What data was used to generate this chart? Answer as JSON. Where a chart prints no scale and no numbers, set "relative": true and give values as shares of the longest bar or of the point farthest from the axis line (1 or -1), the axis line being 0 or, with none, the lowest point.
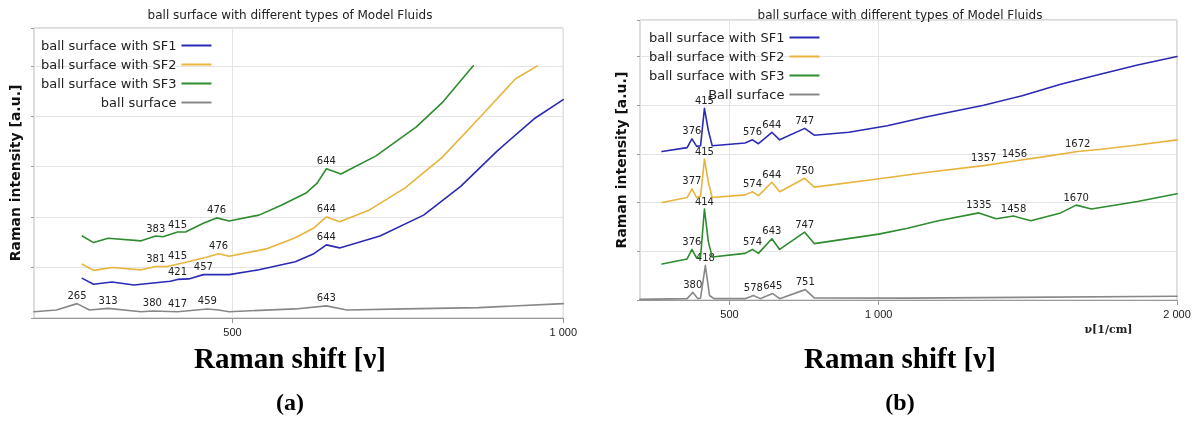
{
  "chart_data": [
    {
      "type": "line",
      "title": "ball surface with different types of Model Fluids",
      "ylabel": "Raman intensity [a.u.]",
      "relative": true,
      "xlim": [
        200,
        1000
      ],
      "xticks": [
        {
          "value": 500,
          "label": "500"
        },
        {
          "value": 1000,
          "label": "1 000"
        }
      ],
      "grid": true,
      "legend": "top left",
      "marker": "none",
      "line_style": "solid",
      "tick_labels": "x",
      "series": [
        {
          "name": "ball surface with SF1",
          "color": "#2a2ab4",
          "x": [
            273,
            290,
            318,
            351,
            384,
            406,
            417,
            434,
            456,
            495,
            540,
            595,
            623,
            642,
            662,
            723,
            789,
            845,
            900,
            956,
            1000
          ],
          "values": [
            0.157,
            0.134,
            0.143,
            0.131,
            0.14,
            0.146,
            0.153,
            0.155,
            0.172,
            0.172,
            0.191,
            0.223,
            0.255,
            0.29,
            0.278,
            0.325,
            0.408,
            0.522,
            0.662,
            0.79,
            0.866
          ]
        },
        {
          "name": "ball surface with SF2",
          "color": "#e8b43c",
          "x": [
            273,
            290,
            318,
            362,
            384,
            401,
            423,
            462,
            479,
            495,
            551,
            595,
            623,
            642,
            662,
            706,
            761,
            817,
            872,
            928,
            961
          ],
          "values": [
            0.213,
            0.189,
            0.2,
            0.191,
            0.204,
            0.204,
            0.217,
            0.242,
            0.255,
            0.245,
            0.274,
            0.318,
            0.357,
            0.401,
            0.382,
            0.427,
            0.516,
            0.637,
            0.79,
            0.949,
            1
          ]
        },
        {
          "name": "ball surface with SF3",
          "color": "#2e8b2e",
          "x": [
            273,
            290,
            312,
            362,
            384,
            395,
            417,
            429,
            456,
            476,
            495,
            540,
            573,
            612,
            628,
            642,
            664,
            717,
            778,
            817,
            864
          ],
          "values": [
            0.325,
            0.299,
            0.316,
            0.306,
            0.325,
            0.322,
            0.341,
            0.341,
            0.376,
            0.397,
            0.385,
            0.408,
            0.446,
            0.497,
            0.535,
            0.592,
            0.571,
            0.643,
            0.758,
            0.854,
            1
          ]
        },
        {
          "name": "ball surface",
          "color": "#888888",
          "x": [
            200,
            234,
            265,
            284,
            312,
            362,
            379,
            417,
            462,
            479,
            495,
            595,
            642,
            673,
            761,
            872,
            1000
          ],
          "values": [
            0.025,
            0.032,
            0.057,
            0.032,
            0.038,
            0.025,
            0.028,
            0.025,
            0.036,
            0.032,
            0.025,
            0.036,
            0.048,
            0.032,
            0.036,
            0.041,
            0.057
          ]
        }
      ],
      "annotations": [
        {
          "text": "383",
          "x": 384,
          "y": 0.325
        },
        {
          "text": "415",
          "x": 417,
          "y": 0.341
        },
        {
          "text": "476",
          "x": 476,
          "y": 0.397
        },
        {
          "text": "644",
          "x": 642,
          "y": 0.592
        },
        {
          "text": "381",
          "x": 384,
          "y": 0.204
        },
        {
          "text": "415",
          "x": 417,
          "y": 0.217
        },
        {
          "text": "476",
          "x": 479,
          "y": 0.255
        },
        {
          "text": "644",
          "x": 642,
          "y": 0.401
        },
        {
          "text": "421",
          "x": 417,
          "y": 0.153
        },
        {
          "text": "457",
          "x": 456,
          "y": 0.172
        },
        {
          "text": "644",
          "x": 642,
          "y": 0.29
        },
        {
          "text": "265",
          "x": 265,
          "y": 0.057
        },
        {
          "text": "313",
          "x": 312,
          "y": 0.038
        },
        {
          "text": "380",
          "x": 379,
          "y": 0.028
        },
        {
          "text": "417",
          "x": 417,
          "y": 0.025
        },
        {
          "text": "459",
          "x": 462,
          "y": 0.036
        },
        {
          "text": "643",
          "x": 642,
          "y": 0.048
        },
        "Raman shift [ν]",
        "(a)"
      ]
    },
    {
      "type": "line",
      "title": "ball surface with different types of Model Fluids",
      "xlabel": "ν[1/cm]",
      "ylabel": "Raman intensity [a.u.]",
      "relative": true,
      "xlim": [
        200,
        2000
      ],
      "xticks": [
        {
          "value": 500,
          "label": "500"
        },
        {
          "value": 1000,
          "label": "1 000"
        },
        {
          "value": 2000,
          "label": "2 000"
        }
      ],
      "grid": true,
      "legend": "top left",
      "marker": "none",
      "line_style": "solid",
      "tick_labels": "x",
      "series": [
        {
          "name": "ball surface with SF1",
          "color": "#2a2ab4",
          "x": [
            274,
            358,
            374,
            390,
            403,
            416,
            429,
            442,
            552,
            577,
            597,
            642,
            668,
            752,
            784,
            900,
            1029,
            1158,
            1352,
            1481,
            1610,
            1739,
            1868,
            2000
          ],
          "values": [
            0.61,
            0.626,
            0.662,
            0.631,
            0.634,
            0.787,
            0.697,
            0.634,
            0.645,
            0.658,
            0.642,
            0.689,
            0.658,
            0.705,
            0.677,
            0.689,
            0.716,
            0.752,
            0.8,
            0.839,
            0.886,
            0.926,
            0.965,
            1
          ]
        },
        {
          "name": "ball surface with SF2",
          "color": "#e8b43c",
          "x": [
            274,
            358,
            374,
            390,
            403,
            416,
            429,
            442,
            552,
            577,
            597,
            642,
            668,
            752,
            784,
            964,
            1158,
            1352,
            1455,
            1545,
            1667,
            1739,
            1868,
            2000
          ],
          "values": [
            0.401,
            0.421,
            0.457,
            0.421,
            0.426,
            0.579,
            0.484,
            0.421,
            0.432,
            0.445,
            0.429,
            0.484,
            0.445,
            0.5,
            0.464,
            0.492,
            0.524,
            0.552,
            0.571,
            0.587,
            0.61,
            0.618,
            0.637,
            0.658
          ]
        },
        {
          "name": "ball surface with SF3",
          "color": "#2e8b2e",
          "x": [
            274,
            358,
            374,
            390,
            403,
            416,
            429,
            442,
            552,
            577,
            597,
            642,
            668,
            752,
            784,
            1000,
            1097,
            1200,
            1336,
            1394,
            1452,
            1510,
            1610,
            1662,
            1713,
            1868,
            2000
          ],
          "values": [
            0.148,
            0.169,
            0.208,
            0.172,
            0.177,
            0.374,
            0.24,
            0.177,
            0.192,
            0.208,
            0.192,
            0.252,
            0.208,
            0.279,
            0.232,
            0.271,
            0.295,
            0.326,
            0.358,
            0.334,
            0.345,
            0.326,
            0.358,
            0.39,
            0.374,
            0.405,
            0.437
          ]
        },
        {
          "name": "Ball surface",
          "color": "#888888",
          "x": [
            200,
            358,
            377,
            394,
            403,
            419,
            433,
            448,
            552,
            580,
            603,
            645,
            668,
            754,
            784,
            1097,
            2000
          ],
          "values": [
            0.003,
            0.006,
            0.032,
            0.006,
            0.009,
            0.142,
            0.019,
            0.006,
            0.006,
            0.019,
            0.006,
            0.027,
            0.006,
            0.043,
            0.009,
            0.008,
            0.016
          ]
        }
      ],
      "annotations": [
        {
          "text": "376",
          "x": 374,
          "y": 0.662
        },
        {
          "text": "415",
          "x": 416,
          "y": 0.787
        },
        {
          "text": "576",
          "x": 577,
          "y": 0.658
        },
        {
          "text": "644",
          "x": 642,
          "y": 0.689
        },
        {
          "text": "747",
          "x": 752,
          "y": 0.705
        },
        {
          "text": "377",
          "x": 374,
          "y": 0.457
        },
        {
          "text": "415",
          "x": 416,
          "y": 0.579
        },
        {
          "text": "574",
          "x": 577,
          "y": 0.445
        },
        {
          "text": "644",
          "x": 642,
          "y": 0.484
        },
        {
          "text": "750",
          "x": 752,
          "y": 0.5
        },
        {
          "text": "1357",
          "x": 1352,
          "y": 0.552
        },
        {
          "text": "1456",
          "x": 1455,
          "y": 0.571
        },
        {
          "text": "1672",
          "x": 1667,
          "y": 0.61
        },
        {
          "text": "376",
          "x": 374,
          "y": 0.208
        },
        {
          "text": "414",
          "x": 416,
          "y": 0.374
        },
        {
          "text": "574",
          "x": 577,
          "y": 0.208
        },
        {
          "text": "643",
          "x": 642,
          "y": 0.252
        },
        {
          "text": "747",
          "x": 752,
          "y": 0.279
        },
        {
          "text": "1335",
          "x": 1336,
          "y": 0.358
        },
        {
          "text": "1458",
          "x": 1452,
          "y": 0.345
        },
        {
          "text": "1670",
          "x": 1662,
          "y": 0.39
        },
        {
          "text": "380",
          "x": 377,
          "y": 0.032
        },
        {
          "text": "418",
          "x": 419,
          "y": 0.142
        },
        {
          "text": "578",
          "x": 580,
          "y": 0.019
        },
        {
          "text": "645",
          "x": 645,
          "y": 0.027
        },
        {
          "text": "751",
          "x": 754,
          "y": 0.043
        },
        "Raman shift [ν]",
        "(b)"
      ]
    }
  ]
}
